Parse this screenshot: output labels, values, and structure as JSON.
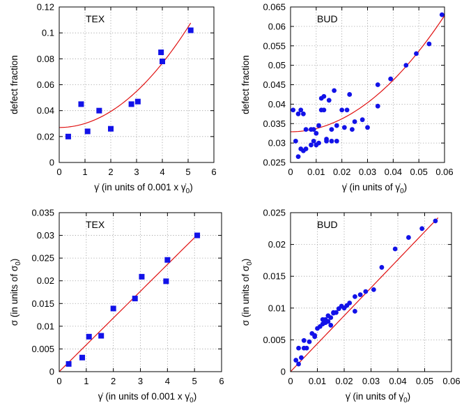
{
  "colors": {
    "marker": "#1212e8",
    "fit": "#e01010",
    "grid": "#9a9a9a",
    "frame": "#000000"
  },
  "chart_data": [
    {
      "type": "scatter",
      "panel_label": "TEX",
      "marker": "square",
      "xlabel_prefix": "γ̇",
      "xlabel_text": "(in units of 0.001 x γ̇",
      "xlabel_sub": "0",
      "xlabel_close": ")",
      "ylabel": "defect fraction",
      "xlim": [
        0,
        6
      ],
      "ylim": [
        0,
        0.12
      ],
      "xticks": [
        "0",
        "1",
        "2",
        "3",
        "4",
        "5",
        "6"
      ],
      "yticks": [
        "0",
        "0.02",
        "0.04",
        "0.06",
        "0.08",
        "0.1",
        "0.12"
      ],
      "grid": true,
      "x": [
        0.35,
        0.85,
        1.1,
        1.55,
        2.0,
        2.8,
        3.05,
        3.95,
        4.0,
        5.1
      ],
      "y": [
        0.02,
        0.045,
        0.024,
        0.04,
        0.026,
        0.045,
        0.047,
        0.085,
        0.078,
        0.102
      ],
      "fit": {
        "kind": "quadratic",
        "a": 0.027,
        "b": 0.0,
        "c": 0.0031,
        "x_range": [
          0,
          5.1
        ]
      }
    },
    {
      "type": "scatter",
      "panel_label": "BUD",
      "marker": "circle",
      "xlabel_prefix": "γ̇",
      "xlabel_text": "(in units of γ̇",
      "xlabel_sub": "0",
      "xlabel_close": ")",
      "ylabel": "defect fraction",
      "xlim": [
        0,
        0.06
      ],
      "ylim": [
        0.025,
        0.065
      ],
      "xticks": [
        "0",
        "0.01",
        "0.02",
        "0.03",
        "0.04",
        "0.05",
        "0.06"
      ],
      "yticks": [
        "0.025",
        "0.03",
        "0.035",
        "0.04",
        "0.045",
        "0.05",
        "0.055",
        "0.06",
        "0.065"
      ],
      "grid": true,
      "x": [
        0.001,
        0.003,
        0.004,
        0.005,
        0.006,
        0.002,
        0.003,
        0.005,
        0.006,
        0.004,
        0.008,
        0.008,
        0.009,
        0.01,
        0.01,
        0.011,
        0.012,
        0.012,
        0.013,
        0.013,
        0.014,
        0.014,
        0.015,
        0.016,
        0.016,
        0.017,
        0.018,
        0.018,
        0.02,
        0.021,
        0.022,
        0.023,
        0.024,
        0.025,
        0.028,
        0.03,
        0.034,
        0.034,
        0.039,
        0.045,
        0.049,
        0.054,
        0.059,
        0.009,
        0.011
      ],
      "y": [
        0.0385,
        0.0375,
        0.0385,
        0.0375,
        0.0335,
        0.0305,
        0.0265,
        0.028,
        0.0285,
        0.0285,
        0.0335,
        0.0295,
        0.0305,
        0.0325,
        0.0295,
        0.0345,
        0.0385,
        0.0415,
        0.042,
        0.0385,
        0.031,
        0.0305,
        0.041,
        0.0305,
        0.0335,
        0.0435,
        0.0305,
        0.0345,
        0.0385,
        0.034,
        0.0385,
        0.0425,
        0.0335,
        0.0355,
        0.036,
        0.034,
        0.0395,
        0.045,
        0.0465,
        0.05,
        0.053,
        0.0555,
        0.063,
        0.0335,
        0.03
      ],
      "fit": {
        "kind": "quadratic",
        "a": 0.0329,
        "b": 0.0,
        "c": 8.3,
        "x_range": [
          0,
          0.06
        ]
      }
    },
    {
      "type": "scatter",
      "panel_label": "TEX",
      "marker": "square",
      "xlabel_prefix": "γ̇",
      "xlabel_text": "(in units of 0.001 x γ̇",
      "xlabel_sub": "0",
      "xlabel_close": ")",
      "ylabel_prefix": "σ",
      "ylabel_text": "(in units of σ",
      "ylabel_sub": "0",
      "ylabel_close": ")",
      "xlim": [
        0,
        6
      ],
      "ylim": [
        0,
        0.035
      ],
      "xticks": [
        "0",
        "1",
        "2",
        "3",
        "4",
        "5",
        "6"
      ],
      "yticks": [
        "0",
        "0.005",
        "0.01",
        "0.015",
        "0.02",
        "0.025",
        "0.03",
        "0.035"
      ],
      "grid": true,
      "x": [
        0.35,
        0.85,
        1.1,
        1.55,
        2.0,
        2.8,
        3.05,
        3.95,
        4.0,
        5.1
      ],
      "y": [
        0.0017,
        0.0031,
        0.0077,
        0.0079,
        0.0139,
        0.0161,
        0.0209,
        0.0199,
        0.0246,
        0.03
      ],
      "fit": {
        "kind": "linear",
        "a": 0.0,
        "b": 0.0059,
        "x_range": [
          0,
          5.1
        ]
      }
    },
    {
      "type": "scatter",
      "panel_label": "BUD",
      "marker": "circle",
      "xlabel_prefix": "γ̇",
      "xlabel_text": "(in units of γ̇",
      "xlabel_sub": "0",
      "xlabel_close": ")",
      "ylabel_prefix": "σ",
      "ylabel_text": "(in units of σ",
      "ylabel_sub": "0",
      "ylabel_close": ")",
      "xlim": [
        0,
        0.06
      ],
      "ylim": [
        0,
        0.025
      ],
      "xticks": [
        "0",
        "0.01",
        "0.02",
        "0.03",
        "0.04",
        "0.05",
        "0.06"
      ],
      "yticks": [
        "0",
        "0.005",
        "0.01",
        "0.015",
        "0.02",
        "0.025"
      ],
      "grid": true,
      "x": [
        0.002,
        0.003,
        0.003,
        0.004,
        0.005,
        0.005,
        0.006,
        0.007,
        0.008,
        0.009,
        0.01,
        0.011,
        0.012,
        0.013,
        0.013,
        0.014,
        0.015,
        0.015,
        0.016,
        0.017,
        0.018,
        0.019,
        0.02,
        0.021,
        0.022,
        0.024,
        0.024,
        0.026,
        0.028,
        0.031,
        0.034,
        0.039,
        0.044,
        0.049,
        0.054,
        0.009,
        0.012,
        0.014,
        0.016
      ],
      "y": [
        0.0018,
        0.0012,
        0.0037,
        0.0022,
        0.0037,
        0.0049,
        0.0037,
        0.0047,
        0.006,
        0.0057,
        0.0068,
        0.0071,
        0.0082,
        0.0077,
        0.0082,
        0.0088,
        0.0073,
        0.0085,
        0.0092,
        0.0093,
        0.0099,
        0.0103,
        0.01,
        0.0104,
        0.0108,
        0.0095,
        0.0118,
        0.0121,
        0.0126,
        0.0129,
        0.0164,
        0.0193,
        0.0211,
        0.0225,
        0.0237,
        0.0055,
        0.0075,
        0.0079,
        0.0093
      ],
      "fit": {
        "kind": "linear",
        "a": 0.0,
        "b": 0.44,
        "x_range": [
          0,
          0.055
        ]
      }
    }
  ]
}
